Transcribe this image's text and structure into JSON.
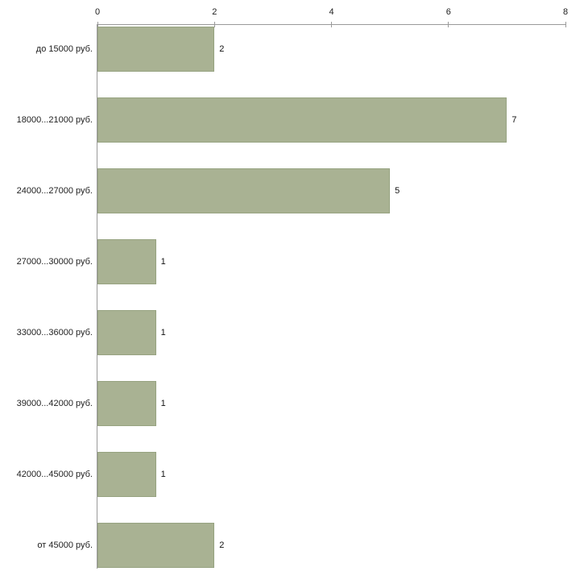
{
  "chart_data": {
    "type": "bar",
    "orientation": "horizontal",
    "title": "",
    "xlabel": "",
    "ylabel": "",
    "categories": [
      "до 15000 руб.",
      "18000...21000 руб.",
      "24000...27000 руб.",
      "27000...30000 руб.",
      "33000...36000 руб.",
      "39000...42000 руб.",
      "42000...45000 руб.",
      "от 45000 руб."
    ],
    "values": [
      2,
      7,
      5,
      1,
      1,
      1,
      1,
      2
    ],
    "x_ticks": [
      0,
      2,
      4,
      6,
      8
    ],
    "xlim": [
      0,
      8
    ],
    "grid": false,
    "legend": false,
    "bar_color": "#a9b293",
    "bar_border_color": "#97a381",
    "axis_color": "#9a9a9a",
    "background_color": "#ffffff"
  }
}
